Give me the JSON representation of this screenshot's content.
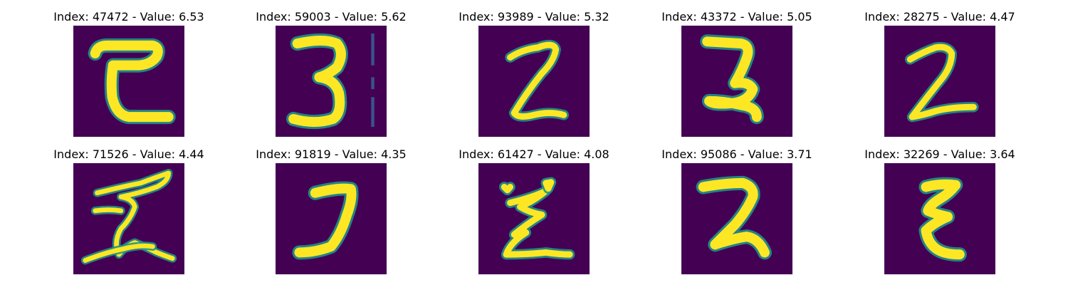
{
  "colors": {
    "background": "#440154",
    "stroke": "#fde725",
    "edge": "#21918c",
    "faint": "#3b528b"
  },
  "panels": [
    {
      "title": "Index: 47472 - Value: 6.53",
      "index": 47472,
      "value": 6.53,
      "shape": "C-like stroke with flat top bar and hook"
    },
    {
      "title": "Index: 59003 - Value: 5.62",
      "index": 59003,
      "value": 5.62,
      "shape": "digit 3 with faint vertical dashes at right"
    },
    {
      "title": "Index: 93989 - Value: 5.32",
      "index": 93989,
      "value": 5.32,
      "shape": "thin Z-shaped 2"
    },
    {
      "title": "Index: 43372 - Value: 5.05",
      "index": 43372,
      "value": 5.05,
      "shape": "2 with right hook at bottom"
    },
    {
      "title": "Index: 28275 - Value: 4.47",
      "index": 28275,
      "value": 4.47,
      "shape": "thin slanted 2"
    },
    {
      "title": "Index: 71526 - Value: 4.44",
      "index": 71526,
      "value": 4.44,
      "shape": "thin wavy 2 with long base"
    },
    {
      "title": "Index: 91819 - Value: 4.35",
      "index": 91819,
      "value": 4.35,
      "shape": "digit 7 / J shape"
    },
    {
      "title": "Index: 61427 - Value: 4.08",
      "index": 61427,
      "value": 4.08,
      "shape": "zigzag Z shape"
    },
    {
      "title": "Index: 95086 - Value: 3.71",
      "index": 95086,
      "value": 3.71,
      "shape": "bold 2 with bottom hook"
    },
    {
      "title": "Index: 32269 - Value: 3.64",
      "index": 32269,
      "value": 3.64,
      "shape": "narrow epsilon-like stroke"
    }
  ]
}
